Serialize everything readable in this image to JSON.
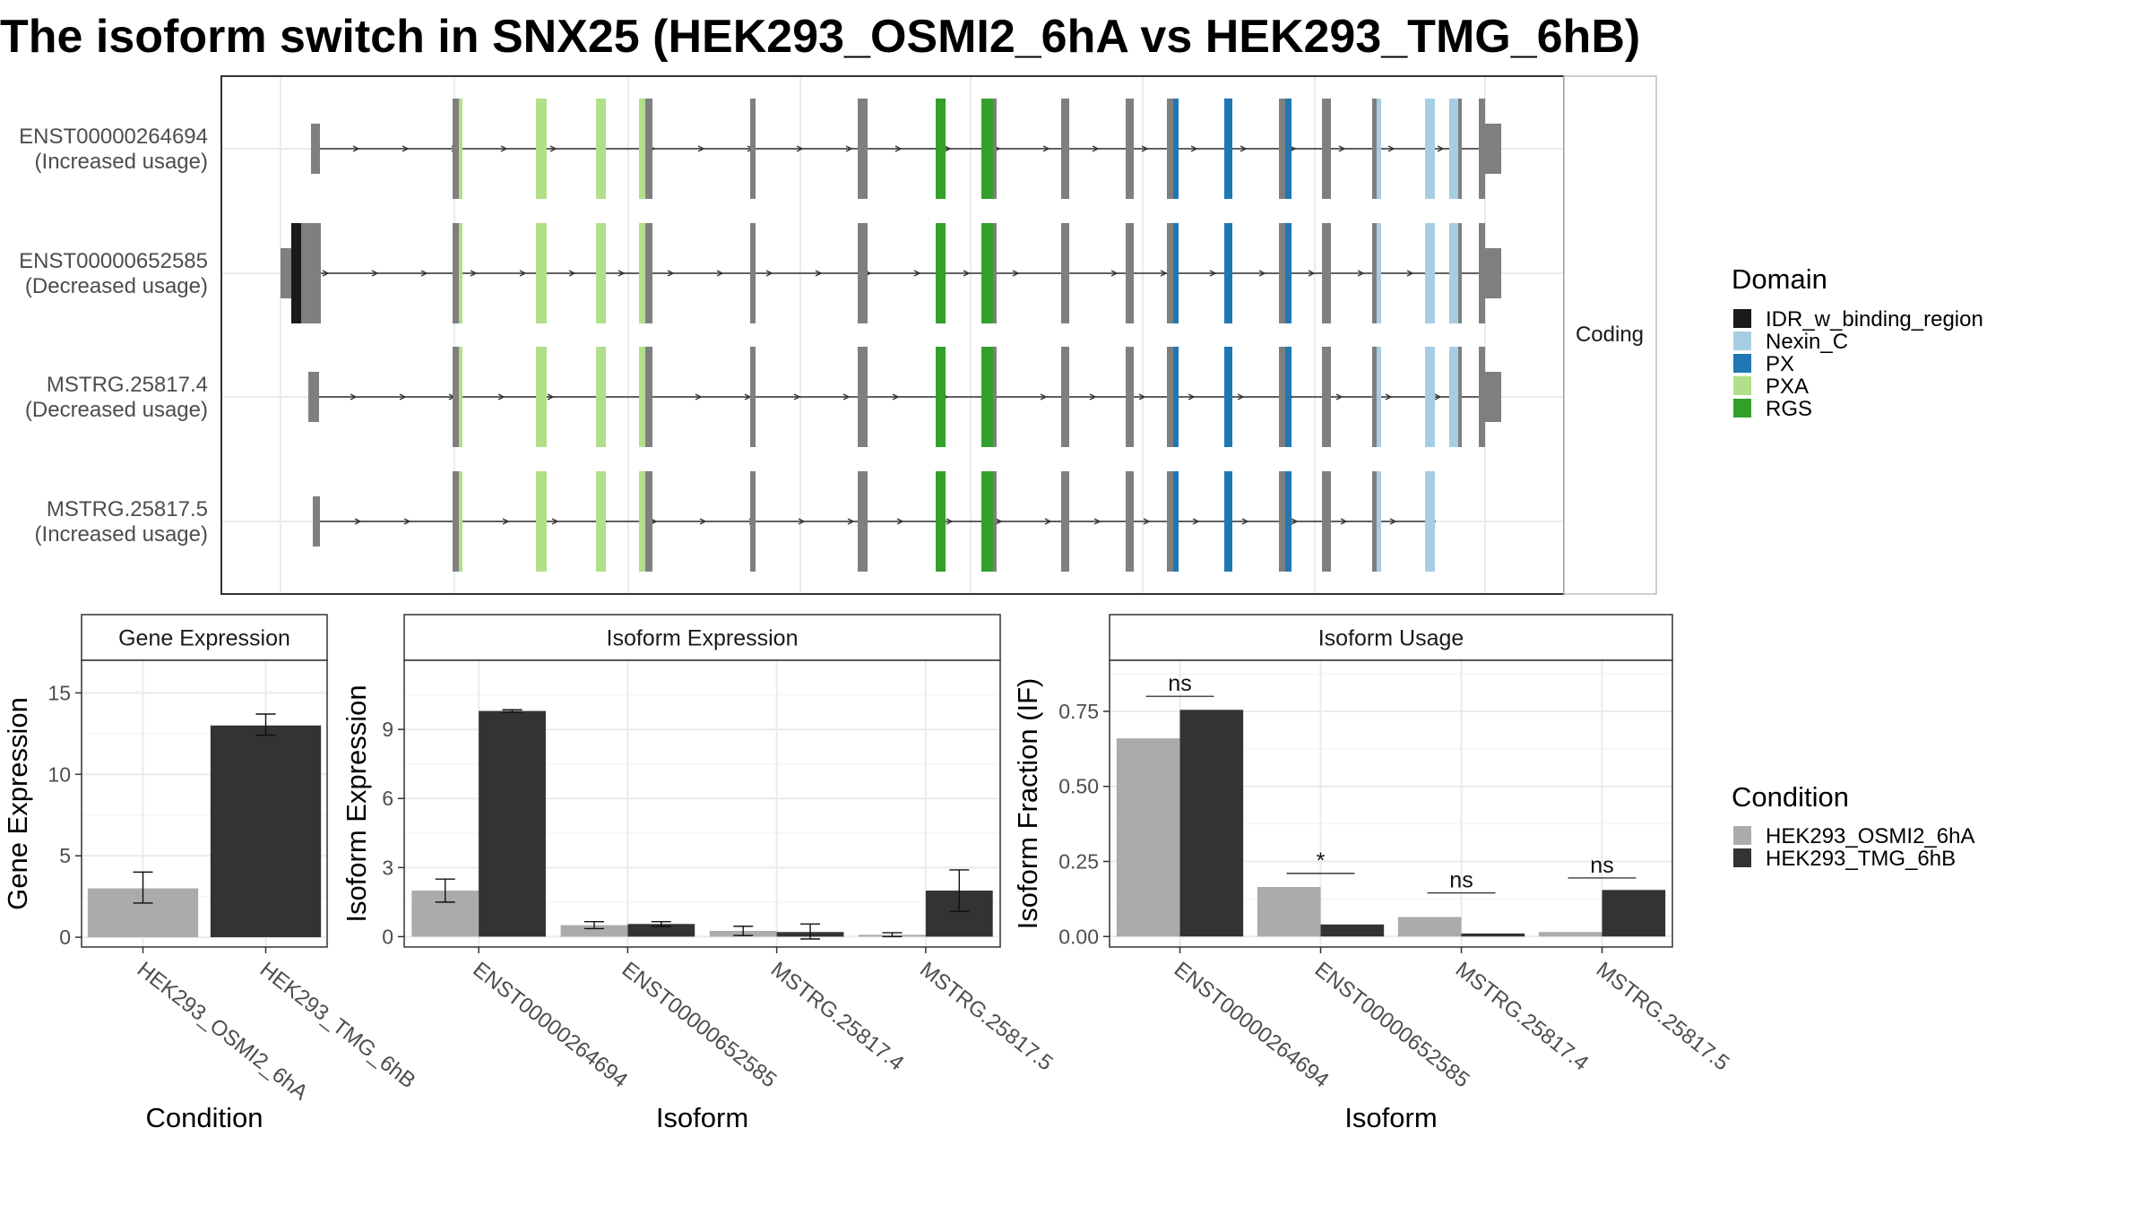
{
  "title": "The isoform switch in SNX25 (HEK293_OSMI2_6hA vs HEK293_TMG_6hB)",
  "colors": {
    "cond_a": "#ABABAB",
    "cond_b": "#333333",
    "exon": "#7F7F7F",
    "domains": {
      "IDR_w_binding_region": "#1A1A1A",
      "Nexin_C": "#A6CEE3",
      "PX": "#1F78B4",
      "PXA": "#B2DF8A",
      "RGS": "#33A02C"
    }
  },
  "structure": {
    "strip": "Coding",
    "transcripts": [
      {
        "id": "ENST00000264694",
        "usage": "(Increased usage)"
      },
      {
        "id": "ENST00000652585",
        "usage": "(Decreased usage)"
      },
      {
        "id": "MSTRG.25817.4",
        "usage": "(Decreased usage)"
      },
      {
        "id": "MSTRG.25817.5",
        "usage": "(Increased usage)"
      }
    ]
  },
  "legend_domain": {
    "title": "Domain",
    "items": [
      "IDR_w_binding_region",
      "Nexin_C",
      "PX",
      "PXA",
      "RGS"
    ]
  },
  "legend_condition": {
    "title": "Condition",
    "items": [
      "HEK293_OSMI2_6hA",
      "HEK293_TMG_6hB"
    ]
  },
  "chart_data": [
    {
      "type": "bar",
      "title": "Gene Expression",
      "xlabel": "Condition",
      "ylabel": "Gene Expression",
      "categories": [
        "HEK293_OSMI2_6hA",
        "HEK293_TMG_6hB"
      ],
      "values": [
        3.0,
        13.0
      ],
      "error_low": [
        2.1,
        12.4
      ],
      "error_high": [
        4.0,
        13.7
      ],
      "ylim": [
        -0.6,
        17
      ],
      "yticks": [
        0,
        5,
        10,
        15
      ]
    },
    {
      "type": "bar",
      "title": "Isoform Expression",
      "xlabel": "Isoform",
      "ylabel": "Isoform Expression",
      "categories": [
        "ENST00000264694",
        "ENST00000652585",
        "MSTRG.25817.4",
        "MSTRG.25817.5"
      ],
      "series": [
        {
          "name": "HEK293_OSMI2_6hA",
          "values": [
            2.0,
            0.5,
            0.25,
            0.08
          ],
          "error_low": [
            1.5,
            0.35,
            0.05,
            0.0
          ],
          "error_high": [
            2.5,
            0.65,
            0.45,
            0.17
          ]
        },
        {
          "name": "HEK293_TMG_6hB",
          "values": [
            9.8,
            0.55,
            0.2,
            2.0
          ],
          "error_low": [
            9.75,
            0.45,
            -0.1,
            1.1
          ],
          "error_high": [
            9.85,
            0.65,
            0.55,
            2.9
          ]
        }
      ],
      "ylim": [
        -0.45,
        12
      ],
      "yticks": [
        0,
        3,
        6,
        9
      ]
    },
    {
      "type": "bar",
      "title": "Isoform Usage",
      "xlabel": "Isoform",
      "ylabel": "Isoform Fraction (IF)",
      "categories": [
        "ENST00000264694",
        "ENST00000652585",
        "MSTRG.25817.4",
        "MSTRG.25817.5"
      ],
      "series": [
        {
          "name": "HEK293_OSMI2_6hA",
          "values": [
            0.66,
            0.165,
            0.065,
            0.015
          ]
        },
        {
          "name": "HEK293_TMG_6hB",
          "values": [
            0.755,
            0.04,
            0.01,
            0.155
          ]
        }
      ],
      "significance": [
        "ns",
        "*",
        "ns",
        "ns"
      ],
      "significance_y": [
        0.8,
        0.21,
        0.145,
        0.195
      ],
      "ylim": [
        -0.035,
        0.92
      ],
      "yticks": [
        0.0,
        0.25,
        0.5,
        0.75
      ],
      "ytick_labels": [
        "0.00",
        "0.25",
        "0.50",
        "0.75"
      ]
    }
  ]
}
